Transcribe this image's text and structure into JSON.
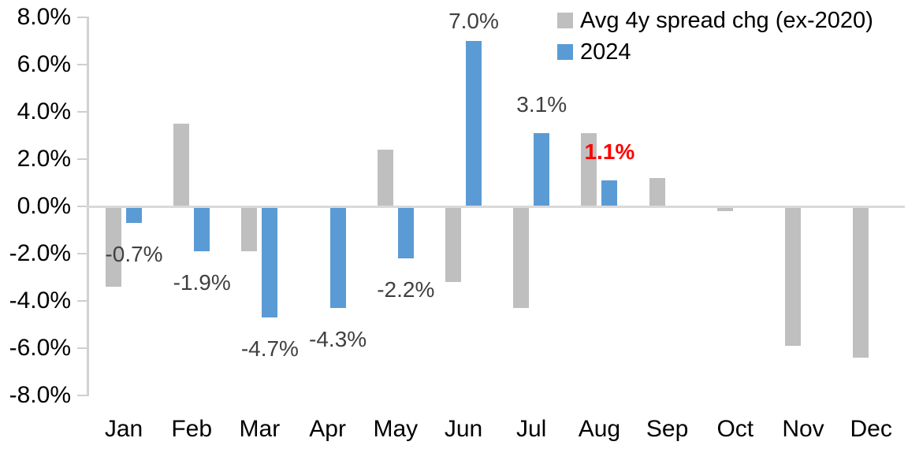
{
  "chart_data": {
    "type": "bar",
    "title": "",
    "categories": [
      "Jan",
      "Feb",
      "Mar",
      "Apr",
      "May",
      "Jun",
      "Jul",
      "Aug",
      "Sep",
      "Oct",
      "Nov",
      "Dec"
    ],
    "series": [
      {
        "name": "Avg 4y spread chg (ex-2020)",
        "color": "#bfbfbf",
        "values": [
          -3.4,
          3.5,
          -1.9,
          0.0,
          2.4,
          -3.2,
          -4.3,
          3.1,
          1.2,
          -0.2,
          -5.9,
          -6.4
        ]
      },
      {
        "name": "2024",
        "color": "#5b9bd5",
        "values": [
          -0.7,
          -1.9,
          -4.7,
          -4.3,
          -2.2,
          7.0,
          3.1,
          1.1,
          null,
          null,
          null,
          null
        ]
      }
    ],
    "data_labels": [
      {
        "category": "Jan",
        "text": "-0.7%",
        "color": "#404040",
        "bold": false
      },
      {
        "category": "Feb",
        "text": "-1.9%",
        "color": "#404040",
        "bold": false
      },
      {
        "category": "Mar",
        "text": "-4.7%",
        "color": "#404040",
        "bold": false
      },
      {
        "category": "Apr",
        "text": "-4.3%",
        "color": "#404040",
        "bold": false
      },
      {
        "category": "May",
        "text": "-2.2%",
        "color": "#404040",
        "bold": false
      },
      {
        "category": "Jun",
        "text": "7.0%",
        "color": "#404040",
        "bold": false
      },
      {
        "category": "Jul",
        "text": "3.1%",
        "color": "#404040",
        "bold": false
      },
      {
        "category": "Aug",
        "text": "1.1%",
        "color": "#ff0000",
        "bold": true
      }
    ],
    "y_axis": {
      "tick_labels": [
        "8.0%",
        "6.0%",
        "4.0%",
        "2.0%",
        "0.0%",
        "-2.0%",
        "-4.0%",
        "-6.0%",
        "-8.0%"
      ],
      "tick_values": [
        8,
        6,
        4,
        2,
        0,
        -2,
        -4,
        -6,
        -8
      ],
      "min": -8,
      "max": 8,
      "unit": "percent"
    },
    "legend_position": "top-right",
    "grid": false,
    "colors": {
      "background": "#ffffff",
      "axis": "#d9d9d9",
      "text": "#000000",
      "data_label": "#404040",
      "highlight": "#ff0000"
    }
  }
}
